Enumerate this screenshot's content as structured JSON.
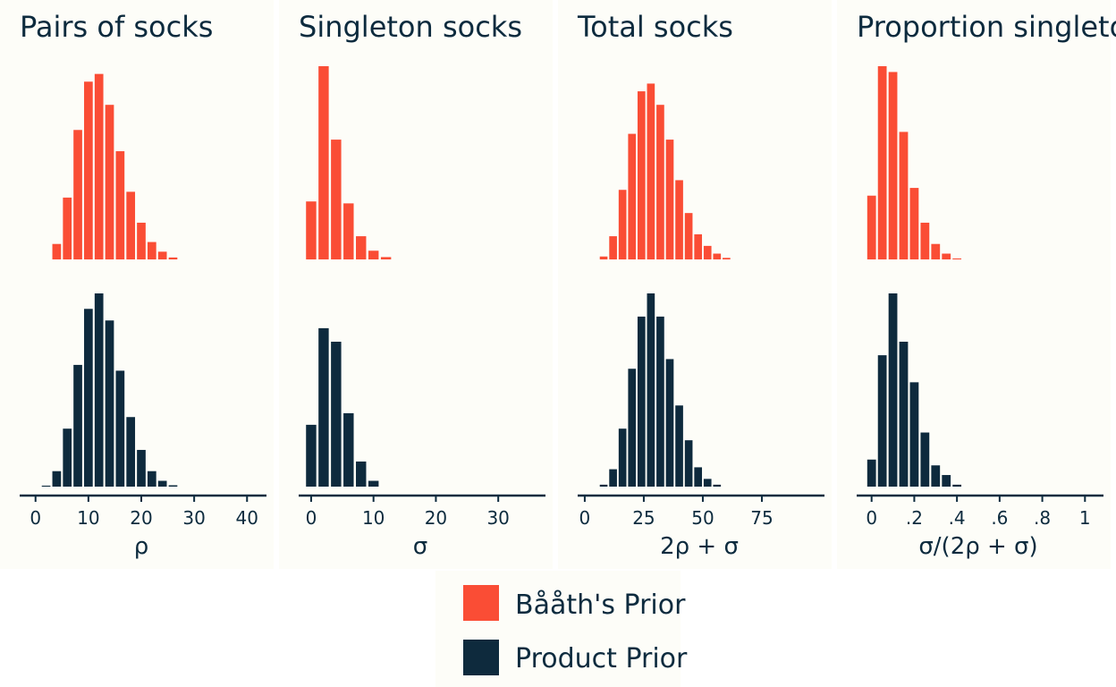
{
  "chart_data": [
    {
      "type": "bar",
      "title": "Pairs of socks",
      "xlabel": "ρ",
      "xlim": [
        -3,
        43
      ],
      "ticks": [
        0,
        10,
        20,
        30,
        40
      ],
      "tick_labels": [
        "0",
        "10",
        "20",
        "30",
        "40"
      ],
      "bin_width": 2,
      "bin_centers": [
        2,
        4,
        6,
        8,
        10,
        12,
        14,
        16,
        18,
        20,
        22,
        24,
        26
      ],
      "series": [
        {
          "name": "Bååth's Prior",
          "values": [
            0,
            0.08,
            0.32,
            0.67,
            0.92,
            0.96,
            0.8,
            0.56,
            0.35,
            0.19,
            0.09,
            0.04,
            0.01
          ]
        },
        {
          "name": "Product Prior",
          "values": [
            0.005,
            0.08,
            0.3,
            0.63,
            0.92,
            1.0,
            0.86,
            0.6,
            0.36,
            0.19,
            0.08,
            0.03,
            0.007
          ]
        }
      ]
    },
    {
      "type": "bar",
      "title": "Singleton socks",
      "xlabel": "σ",
      "xlim": [
        -2,
        37
      ],
      "ticks": [
        0,
        10,
        20,
        30
      ],
      "tick_labels": [
        "0",
        "10",
        "20",
        "30"
      ],
      "bin_width": 2,
      "bin_centers": [
        0,
        2,
        4,
        6,
        8,
        10,
        12
      ],
      "series": [
        {
          "name": "Bååth's Prior",
          "values": [
            0.3,
            1.0,
            0.62,
            0.29,
            0.12,
            0.045,
            0.012
          ]
        },
        {
          "name": "Product Prior",
          "values": [
            0.32,
            0.82,
            0.75,
            0.38,
            0.13,
            0.03,
            0
          ]
        }
      ]
    },
    {
      "type": "bar",
      "title": "Total socks",
      "xlabel": "2ρ + σ",
      "xlim": [
        -3,
        100
      ],
      "ticks": [
        0,
        25,
        50,
        75
      ],
      "tick_labels": [
        "0",
        "25",
        "50",
        "75"
      ],
      "bin_width": 4,
      "bin_centers": [
        8,
        12,
        16,
        20,
        24,
        28,
        32,
        36,
        40,
        44,
        48,
        52,
        56,
        60
      ],
      "series": [
        {
          "name": "Bååth's Prior",
          "values": [
            0.015,
            0.12,
            0.36,
            0.65,
            0.87,
            0.91,
            0.8,
            0.62,
            0.41,
            0.24,
            0.13,
            0.07,
            0.03,
            0.008
          ]
        },
        {
          "name": "Product Prior",
          "values": [
            0.01,
            0.09,
            0.3,
            0.61,
            0.88,
            1.0,
            0.88,
            0.66,
            0.42,
            0.24,
            0.1,
            0.04,
            0.01,
            0
          ]
        }
      ]
    },
    {
      "type": "bar",
      "title": "Proportion singletons",
      "xlabel": "σ/(2ρ + σ)",
      "xlim": [
        -0.07,
        1.07
      ],
      "ticks": [
        0,
        0.2,
        0.4,
        0.6,
        0.8,
        1
      ],
      "tick_labels": [
        "0",
        ".2",
        ".4",
        ".6",
        ".8",
        "1"
      ],
      "bin_width": 0.05,
      "bin_centers": [
        0,
        0.05,
        0.1,
        0.15,
        0.2,
        0.25,
        0.3,
        0.35,
        0.4
      ],
      "series": [
        {
          "name": "Bååth's Prior",
          "values": [
            0.33,
            1.0,
            0.97,
            0.66,
            0.37,
            0.19,
            0.08,
            0.03,
            0.005
          ]
        },
        {
          "name": "Product Prior",
          "values": [
            0.14,
            0.68,
            1.0,
            0.75,
            0.54,
            0.28,
            0.11,
            0.06,
            0.01
          ]
        }
      ]
    }
  ],
  "legend": {
    "placement": "bottom",
    "items": [
      {
        "label": "Bååth's Prior",
        "color": "#fa4d35"
      },
      {
        "label": "Product Prior",
        "color": "#0e2a3d"
      }
    ]
  },
  "colors": {
    "panel_background": "#fdfdf8",
    "axis": "#0d2b3e"
  }
}
